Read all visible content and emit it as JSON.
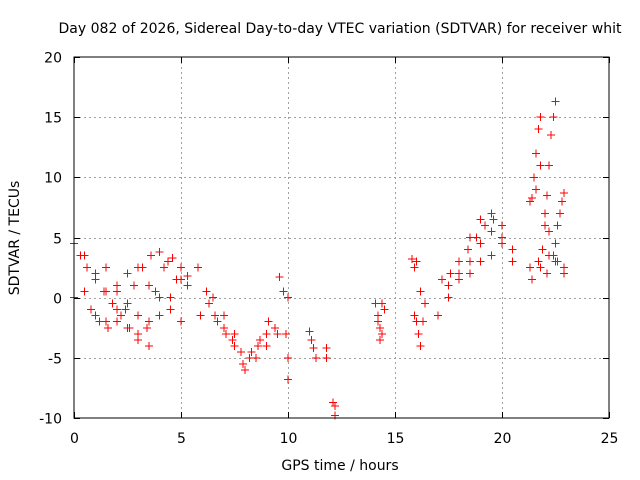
{
  "chart_data": {
    "type": "scatter",
    "title": "Day 082 of 2026, Sidereal Day-to-day VTEC variation (SDTVAR) for receiver whit",
    "xlabel": "GPS time / hours",
    "ylabel": "SDTVAR / TECUs",
    "xlim": [
      0,
      25
    ],
    "ylim": [
      -10,
      20
    ],
    "xticks": [
      0,
      5,
      10,
      15,
      20,
      25
    ],
    "yticks": [
      -10,
      -5,
      0,
      5,
      10,
      15,
      20
    ],
    "xtick_labels": [
      "0",
      "5",
      "10",
      "15",
      "20",
      "25"
    ],
    "ytick_labels": [
      "-10",
      "-5",
      "0",
      "5",
      "10",
      "15",
      "20"
    ],
    "grid": true,
    "marker": "+",
    "series": [
      {
        "name": "SDTVAR",
        "color": "#ff0000",
        "segments": [
          {
            "x": [
              0.0,
              0.3,
              0.6,
              1.0,
              1.4,
              1.8,
              2.2,
              2.6,
              3.0,
              3.4,
              3.8,
              4.2,
              4.6,
              5.0,
              5.3
            ],
            "y": [
              4.5,
              3.5,
              2.5,
              1.5,
              0.5,
              -0.5,
              -1.5,
              -2.5,
              -3.0,
              -2.5,
              0.5,
              2.5,
              3.3,
              2.5,
              1.8
            ]
          },
          {
            "x": [
              0.0,
              0.5,
              1.0,
              1.5,
              2.0,
              2.5,
              3.0,
              3.5,
              4.0,
              4.5,
              5.0,
              5.3
            ],
            "y": [
              0.0,
              0.5,
              -1.5,
              -2.0,
              -1.0,
              -2.5,
              -3.5,
              -4.0,
              -1.5,
              0.0,
              1.5,
              1.0
            ]
          },
          {
            "x": [
              0.5,
              1.0,
              1.5,
              2.0,
              2.5,
              3.0,
              3.5,
              4.0,
              4.5,
              5.0
            ],
            "y": [
              3.5,
              2.0,
              0.5,
              0.5,
              2.0,
              2.5,
              1.0,
              0.0,
              -1.0,
              -2.0
            ]
          },
          {
            "x": [
              0.8,
              1.2,
              1.6,
              2.0,
              2.4,
              2.8,
              3.2,
              3.6,
              4.0,
              4.4,
              4.8
            ],
            "y": [
              -1.0,
              -2.0,
              -2.5,
              -2.0,
              -1.0,
              1.0,
              2.5,
              3.5,
              3.8,
              3.0,
              1.5
            ]
          },
          {
            "x": [
              1.0,
              1.5,
              2.0,
              2.5,
              3.0,
              3.5
            ],
            "y": [
              1.5,
              2.5,
              1.0,
              -0.5,
              -1.5,
              -2.0
            ]
          },
          {
            "x": [
              5.8,
              6.2,
              6.6,
              7.0,
              7.4,
              7.8,
              8.2,
              8.6,
              9.0,
              9.4
            ],
            "y": [
              2.5,
              0.5,
              -1.5,
              -2.5,
              -3.5,
              -4.5,
              -5.0,
              -4.0,
              -3.0,
              -2.5
            ]
          },
          {
            "x": [
              5.9,
              6.3,
              6.7,
              7.1,
              7.5,
              7.9,
              8.3,
              8.7,
              9.1
            ],
            "y": [
              -1.5,
              -0.5,
              -2.0,
              -3.0,
              -4.0,
              -5.5,
              -4.5,
              -3.5,
              -2.0
            ]
          },
          {
            "x": [
              6.5,
              7.0,
              7.5,
              8.0,
              8.5,
              9.0,
              9.5
            ],
            "y": [
              0.0,
              -1.5,
              -3.0,
              -6.0,
              -5.0,
              -4.0,
              -3.0
            ]
          },
          {
            "x": [
              9.6,
              9.8,
              10.0
            ],
            "y": [
              1.7,
              0.5,
              0.0
            ]
          },
          {
            "x": [
              9.9,
              10.0,
              10.0
            ],
            "y": [
              -3.0,
              -5.0,
              -6.8
            ]
          },
          {
            "x": [
              11.0,
              11.1,
              11.2,
              11.3
            ],
            "y": [
              -2.8,
              -3.5,
              -4.2,
              -5.0
            ]
          },
          {
            "x": [
              11.8,
              11.8
            ],
            "y": [
              -4.2,
              -5.0
            ]
          },
          {
            "x": [
              12.1,
              12.2,
              12.2
            ],
            "y": [
              -8.7,
              -9.0,
              -9.8
            ]
          },
          {
            "x": [
              14.1,
              14.2,
              14.3,
              14.4,
              14.5
            ],
            "y": [
              -0.5,
              -1.5,
              -2.5,
              -3.0,
              -1.0
            ]
          },
          {
            "x": [
              14.2,
              14.3,
              14.4
            ],
            "y": [
              -2.0,
              -3.5,
              -0.5
            ]
          },
          {
            "x": [
              15.8,
              15.9,
              16.0
            ],
            "y": [
              3.2,
              2.5,
              3.0
            ]
          },
          {
            "x": [
              15.9,
              16.0,
              16.1,
              16.2,
              16.3
            ],
            "y": [
              -1.5,
              -2.0,
              -3.0,
              -4.0,
              -2.0
            ]
          },
          {
            "x": [
              16.2,
              16.4
            ],
            "y": [
              0.5,
              -0.5
            ]
          },
          {
            "x": [
              17.0,
              17.5,
              18.0,
              18.5,
              19.0,
              19.5,
              20.0,
              20.5
            ],
            "y": [
              -1.5,
              0.0,
              1.5,
              3.0,
              4.5,
              5.5,
              5.0,
              3.0
            ]
          },
          {
            "x": [
              17.5,
              18.0,
              18.5,
              19.0,
              19.5,
              20.0,
              20.5
            ],
            "y": [
              1.0,
              3.0,
              5.0,
              6.5,
              7.0,
              6.0,
              4.0
            ]
          },
          {
            "x": [
              18.0,
              18.5,
              19.0,
              19.5,
              20.0,
              20.5
            ],
            "y": [
              2.0,
              2.0,
              3.0,
              3.5,
              4.5,
              3.0
            ]
          },
          {
            "x": [
              17.2,
              17.6,
              18.0,
              18.4,
              18.8,
              19.2,
              19.6
            ],
            "y": [
              1.5,
              2.0,
              3.0,
              4.0,
              5.0,
              6.0,
              6.5
            ]
          },
          {
            "x": [
              21.3,
              21.4,
              21.5,
              21.6,
              21.7,
              21.8
            ],
            "y": [
              8.0,
              8.3,
              10.0,
              12.0,
              14.0,
              15.0
            ]
          },
          {
            "x": [
              21.6,
              21.8,
              22.0,
              22.2,
              22.4
            ],
            "y": [
              9.0,
              11.0,
              7.0,
              5.5,
              3.5
            ]
          },
          {
            "x": [
              21.9,
              22.0,
              22.1,
              22.2,
              22.3,
              22.4,
              22.5
            ],
            "y": [
              4.0,
              6.0,
              8.5,
              11.0,
              13.5,
              15.0,
              16.3
            ]
          },
          {
            "x": [
              21.3,
              21.7,
              22.1,
              22.5,
              22.9
            ],
            "y": [
              2.5,
              3.0,
              2.0,
              3.0,
              2.5
            ]
          },
          {
            "x": [
              21.4,
              21.8,
              22.2,
              22.6,
              22.9
            ],
            "y": [
              1.5,
              2.5,
              3.5,
              3.0,
              2.0
            ]
          },
          {
            "x": [
              22.5,
              22.6,
              22.7,
              22.8,
              22.9
            ],
            "y": [
              4.5,
              6.0,
              7.0,
              8.0,
              8.7
            ]
          }
        ]
      }
    ]
  }
}
